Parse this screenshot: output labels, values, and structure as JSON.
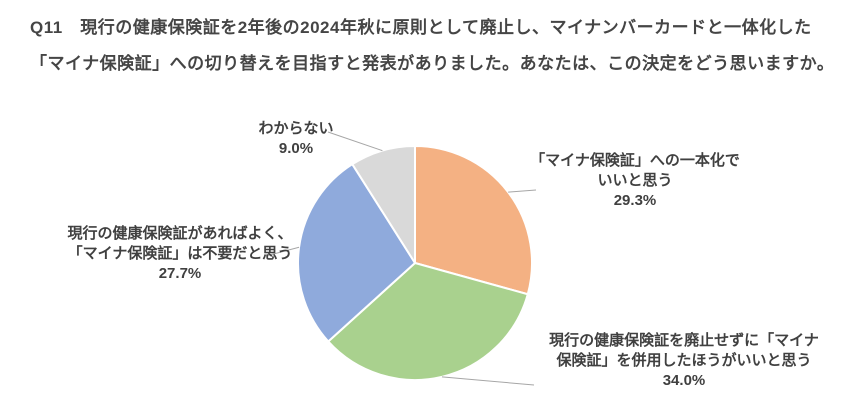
{
  "title": {
    "line1": "Q11　現行の健康保険証を2年後の2024年秋に原則として廃止し、マイナンバーカードと一体化した",
    "line2": "「マイナ保険証」への切り替えを目指すと発表がありました。あなたは、この決定をどう思いますか。"
  },
  "chart_data": {
    "type": "pie",
    "title": "Q11 現行の健康保険証を2年後の2024年秋に原則として廃止し、マイナンバーカードと一体化した「マイナ保険証」への切り替えを目指すと発表がありました。あなたは、この決定をどう思いますか。",
    "start_angle_deg": 0,
    "direction": "clockwise",
    "legend_position": "none",
    "labels_outside_with_leader_lines": true,
    "leader_line_color": "#A6A6A6",
    "slice_border_color": "#FFFFFF",
    "label_text_color": "#404040",
    "title_text_color": "#454545",
    "slices": [
      {
        "id": "unify",
        "label": "「マイナ保険証」への一本化でいいと思う",
        "value": 29.3,
        "pct_text": "29.3%",
        "color": "#F4B183",
        "label_lines": [
          "「マイナ保険証」への一本化で",
          "いいと思う",
          "29.3%"
        ]
      },
      {
        "id": "coexist",
        "label": "現行の健康保険証を廃止せずに「マイナ保険証」を併用したほうがいいと思う",
        "value": 34.0,
        "pct_text": "34.0%",
        "color": "#A9D18E",
        "label_lines": [
          "現行の健康保険証を廃止せずに「マイナ",
          "保険証」を併用したほうがいいと思う",
          "34.0%"
        ]
      },
      {
        "id": "unnecessary",
        "label": "現行の健康保険証があればよく、「マイナ保険証」は不要だと思う",
        "value": 27.7,
        "pct_text": "27.7%",
        "color": "#8FAADC",
        "label_lines": [
          "現行の健康保険証があればよく、",
          "「マイナ保険証」は不要だと思う",
          "27.7%"
        ]
      },
      {
        "id": "dont-know",
        "label": "わからない",
        "value": 9.0,
        "pct_text": "9.0%",
        "color": "#D9D9D9",
        "label_lines": [
          "わからない",
          "9.0%"
        ]
      }
    ]
  }
}
